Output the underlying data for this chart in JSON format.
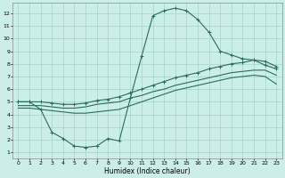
{
  "xlabel": "Humidex (Indice chaleur)",
  "bg_color": "#cceee8",
  "grid_color": "#aad8d0",
  "line_color": "#2a6b60",
  "xlim": [
    -0.5,
    23.5
  ],
  "ylim": [
    0.5,
    12.8
  ],
  "xticks": [
    0,
    1,
    2,
    3,
    4,
    5,
    6,
    7,
    8,
    9,
    10,
    11,
    12,
    13,
    14,
    15,
    16,
    17,
    18,
    19,
    20,
    21,
    22,
    23
  ],
  "yticks": [
    1,
    2,
    3,
    4,
    5,
    6,
    7,
    8,
    9,
    10,
    11,
    12
  ],
  "curve1_x": [
    0,
    1,
    2,
    3,
    4,
    5,
    6,
    7,
    8,
    9,
    10,
    11,
    12,
    13,
    14,
    15,
    16,
    17,
    18,
    19,
    20,
    21,
    22,
    23
  ],
  "curve1_y": [
    5.0,
    5.0,
    4.4,
    2.6,
    2.1,
    1.5,
    1.4,
    1.5,
    2.1,
    1.9,
    5.3,
    8.6,
    11.8,
    12.2,
    12.4,
    12.2,
    11.5,
    10.5,
    9.0,
    8.7,
    8.4,
    8.3,
    7.9,
    7.6
  ],
  "curve2_x": [
    0,
    1,
    2,
    3,
    4,
    5,
    6,
    7,
    8,
    9,
    10,
    11,
    12,
    13,
    14,
    15,
    16,
    17,
    18,
    19,
    20,
    21,
    22,
    23
  ],
  "curve2_y": [
    5.0,
    5.0,
    5.0,
    4.9,
    4.8,
    4.8,
    4.9,
    5.1,
    5.2,
    5.4,
    5.7,
    6.0,
    6.3,
    6.6,
    6.9,
    7.1,
    7.3,
    7.6,
    7.8,
    8.0,
    8.1,
    8.3,
    8.2,
    7.8
  ],
  "curve3_x": [
    0,
    1,
    2,
    3,
    4,
    5,
    6,
    7,
    8,
    9,
    10,
    11,
    12,
    13,
    14,
    15,
    16,
    17,
    18,
    19,
    20,
    21,
    22,
    23
  ],
  "curve3_y": [
    4.7,
    4.7,
    4.7,
    4.6,
    4.5,
    4.5,
    4.6,
    4.8,
    4.9,
    5.0,
    5.3,
    5.5,
    5.8,
    6.0,
    6.3,
    6.5,
    6.7,
    6.9,
    7.1,
    7.3,
    7.4,
    7.5,
    7.5,
    7.1
  ],
  "curve4_x": [
    0,
    1,
    2,
    3,
    4,
    5,
    6,
    7,
    8,
    9,
    10,
    11,
    12,
    13,
    14,
    15,
    16,
    17,
    18,
    19,
    20,
    21,
    22,
    23
  ],
  "curve4_y": [
    4.5,
    4.5,
    4.4,
    4.3,
    4.2,
    4.1,
    4.1,
    4.2,
    4.3,
    4.4,
    4.7,
    5.0,
    5.3,
    5.6,
    5.9,
    6.1,
    6.3,
    6.5,
    6.7,
    6.9,
    7.0,
    7.1,
    7.0,
    6.4
  ]
}
